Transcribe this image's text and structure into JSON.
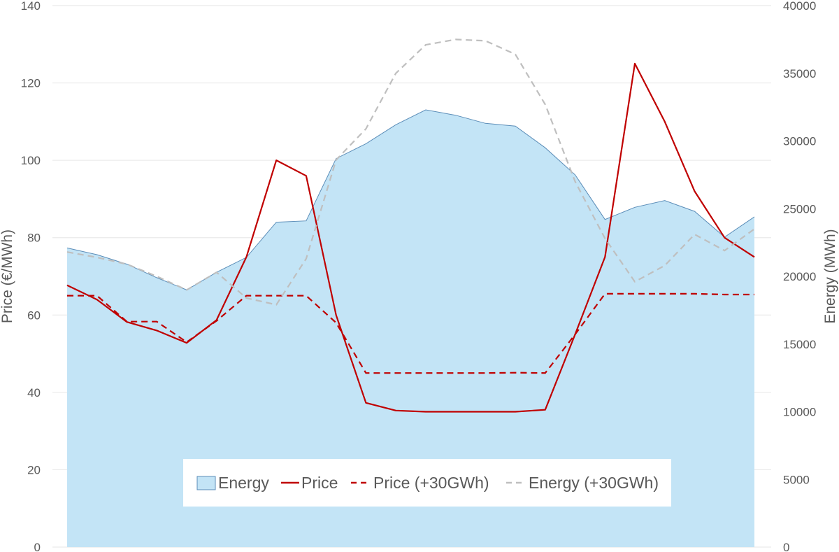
{
  "chart_data": {
    "type": "area",
    "x_count": 24,
    "y_left": {
      "label": "Price (€/MWh)",
      "range": [
        0,
        140
      ],
      "ticks": [
        "0",
        "20",
        "40",
        "60",
        "80",
        "100",
        "120",
        "140"
      ]
    },
    "y_right": {
      "label": "Energy (MWh)",
      "range": [
        0,
        40000
      ],
      "ticks": [
        "0",
        "5000",
        "10000",
        "15000",
        "20000",
        "25000",
        "30000",
        "35000",
        "40000"
      ]
    },
    "grid": true,
    "legend_position": "bottom-center",
    "series": [
      {
        "name": "Energy",
        "type": "area",
        "axis": "right",
        "fill": "#c3e4f6",
        "stroke": "#5b8db8",
        "values": [
          22100,
          21600,
          20900,
          19900,
          19000,
          20300,
          21400,
          24000,
          24100,
          28700,
          29800,
          31200,
          32300,
          31900,
          31300,
          31100,
          29500,
          27500,
          24200,
          25100,
          25600,
          24800,
          22900,
          24400
        ]
      },
      {
        "name": "Price",
        "type": "line",
        "axis": "left",
        "color": "#c00000",
        "dash": "solid",
        "values": [
          67.7,
          64,
          58.2,
          56,
          52.8,
          58.7,
          75,
          100,
          96,
          60,
          37.3,
          35.3,
          35,
          35,
          35,
          35,
          35.5,
          55,
          75,
          125,
          110,
          92,
          80,
          75
        ]
      },
      {
        "name": "Price (+30GWh)",
        "type": "line",
        "axis": "left",
        "color": "#c00000",
        "dash": "dashed",
        "values": [
          65,
          65,
          58.3,
          58.3,
          53,
          58.5,
          65,
          65,
          65,
          58,
          45,
          45,
          45,
          45,
          45,
          45.1,
          45,
          55,
          65.5,
          65.5,
          65.5,
          65.5,
          65.3,
          65.3
        ]
      },
      {
        "name": "Energy (+30GWh)",
        "type": "line",
        "axis": "right",
        "color": "#bfbfbf",
        "dash": "dashed",
        "values": [
          21800,
          21400,
          20900,
          20000,
          19000,
          20300,
          18400,
          17900,
          21300,
          28600,
          30900,
          35000,
          37100,
          37500,
          37400,
          36400,
          32700,
          27000,
          22800,
          19600,
          20800,
          23100,
          21900,
          23500
        ]
      }
    ]
  }
}
